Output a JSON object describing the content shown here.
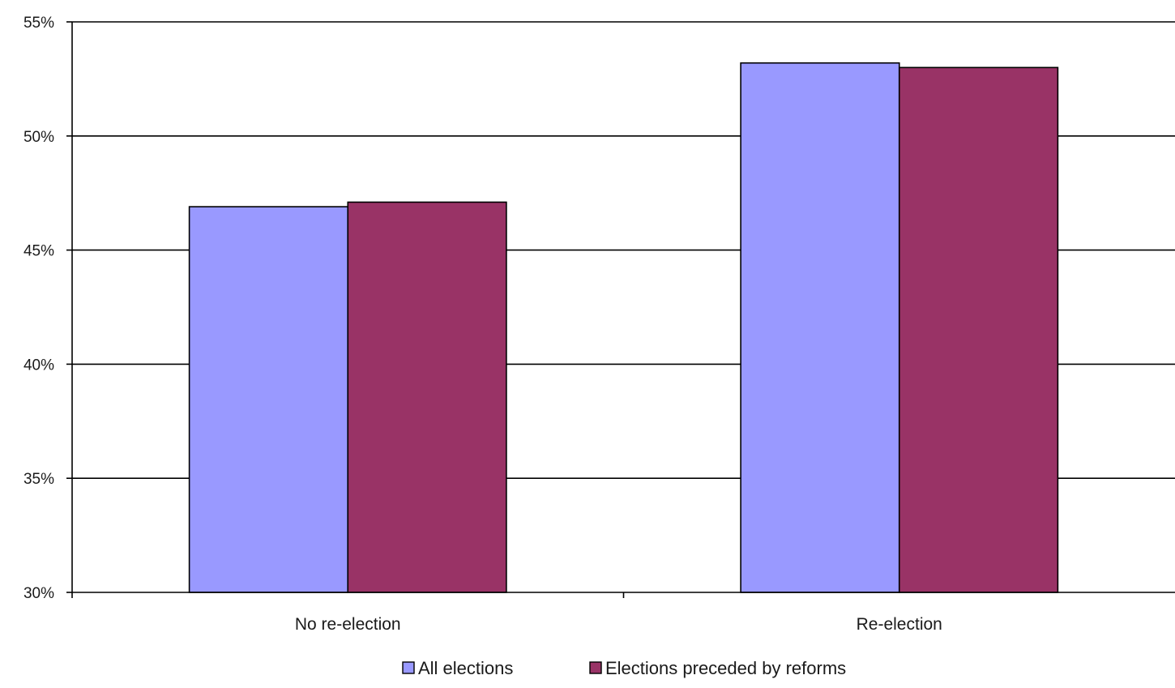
{
  "chart_data": {
    "type": "bar",
    "title": "",
    "xlabel": "",
    "ylabel": "",
    "categories": [
      "No re-election",
      "Re-election"
    ],
    "series": [
      {
        "name": "All elections",
        "values": [
          46.9,
          53.2
        ],
        "color": "#9999ff"
      },
      {
        "name": "Elections preceded by reforms",
        "values": [
          47.1,
          53.0
        ],
        "color": "#993366"
      }
    ],
    "ylim": [
      30,
      55
    ],
    "yticks": [
      30,
      35,
      40,
      45,
      50,
      55
    ],
    "ytick_labels": [
      "30%",
      "35%",
      "40%",
      "45%",
      "50%",
      "55%"
    ],
    "grid": true,
    "legend_position": "bottom"
  }
}
